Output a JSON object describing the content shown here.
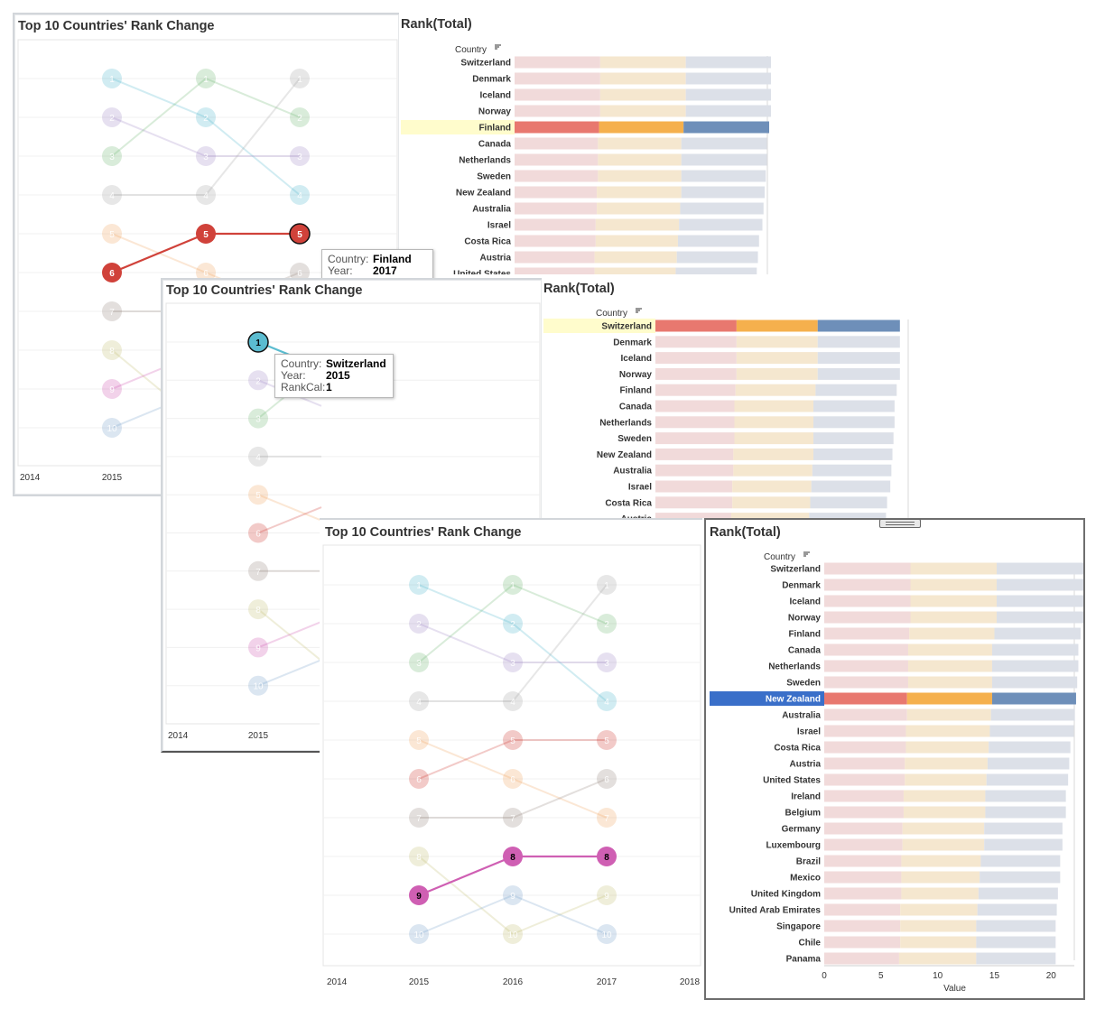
{
  "slope_title": "Top 10 Countries' Rank Change",
  "bar_title": "Rank(Total)",
  "country_header": "Country",
  "value_label": "Value",
  "colors": {
    "seg1": "#e8786f",
    "seg2": "#f5b04d",
    "seg3": "#6e8fb9",
    "highlight_row": "#fffccc",
    "selected_row": "#3a6fc9"
  },
  "tooltip_field_labels": {
    "country": "Country:",
    "year": "Year:",
    "rank": "RankCal:"
  },
  "chart_data": [
    {
      "type": "line",
      "title": "Top 10 Countries' Rank Change",
      "x_ticks": [
        "2014",
        "2015",
        "2016",
        "2017",
        "2018"
      ],
      "x": [
        2015,
        2016,
        2017
      ],
      "series": [
        {
          "values": [
            1,
            2,
            4
          ],
          "color": "#5bbcd0"
        },
        {
          "values": [
            2,
            3,
            3
          ],
          "color": "#a68fc8"
        },
        {
          "values": [
            3,
            1,
            2
          ],
          "color": "#77b97b"
        },
        {
          "values": [
            4,
            4,
            1
          ],
          "color": "#a8a8a8"
        },
        {
          "values": [
            5,
            6,
            7
          ],
          "color": "#f0a868"
        },
        {
          "values": [
            6,
            5,
            5
          ],
          "color": "#d0423a"
        },
        {
          "values": [
            7,
            7,
            6
          ],
          "color": "#9c8b86"
        },
        {
          "values": [
            8,
            10,
            9
          ],
          "color": "#c6c279"
        },
        {
          "values": [
            9,
            8,
            8
          ],
          "color": "#cf5fb3"
        },
        {
          "values": [
            10,
            9,
            10
          ],
          "color": "#7ea4cc"
        }
      ],
      "highlight": [
        {
          "series": 5,
          "label": "Finland"
        },
        {
          "series": 0,
          "label": "Switzerland"
        },
        {
          "series": 8,
          "label": ""
        }
      ],
      "tooltips": [
        {
          "country": "Finland",
          "year": "2017"
        },
        {
          "country": "Switzerland",
          "year": "2015",
          "rank": "1"
        }
      ]
    },
    {
      "type": "bar",
      "title": "Rank(Total)",
      "stacked": true,
      "xlim": [
        0,
        23
      ],
      "x_ticks": [
        0,
        5,
        10,
        15,
        20
      ],
      "xlabel": "Value",
      "categories": [
        "Switzerland",
        "Denmark",
        "Iceland",
        "Norway",
        "Finland",
        "Canada",
        "Netherlands",
        "Sweden",
        "New Zealand",
        "Australia",
        "Israel",
        "Costa Rica",
        "Austria",
        "United States",
        "Ireland",
        "Belgium",
        "Germany",
        "Luxembourg",
        "Brazil",
        "Mexico",
        "United Kingdom",
        "United Arab Emirates",
        "Singapore",
        "Chile",
        "Panama"
      ],
      "series": [
        {
          "values": [
            7.6,
            7.6,
            7.6,
            7.6,
            7.5,
            7.4,
            7.4,
            7.4,
            7.3,
            7.3,
            7.2,
            7.2,
            7.1,
            7.1,
            7.0,
            7.0,
            6.9,
            6.9,
            6.8,
            6.8,
            6.8,
            6.7,
            6.7,
            6.7,
            6.6
          ]
        },
        {
          "values": [
            7.6,
            7.6,
            7.6,
            7.6,
            7.5,
            7.4,
            7.4,
            7.4,
            7.5,
            7.4,
            7.4,
            7.3,
            7.3,
            7.2,
            7.2,
            7.2,
            7.2,
            7.2,
            7.0,
            6.9,
            6.8,
            6.8,
            6.7,
            6.7,
            6.8
          ]
        },
        {
          "values": [
            7.7,
            7.7,
            7.7,
            7.7,
            7.6,
            7.6,
            7.6,
            7.5,
            7.4,
            7.4,
            7.4,
            7.2,
            7.2,
            7.2,
            7.1,
            7.1,
            6.9,
            6.9,
            7.0,
            7.1,
            7.0,
            7.0,
            7.0,
            7.0,
            7.0
          ]
        }
      ],
      "highlight_rows": [
        "Finland",
        "Switzerland",
        "New Zealand"
      ]
    }
  ]
}
